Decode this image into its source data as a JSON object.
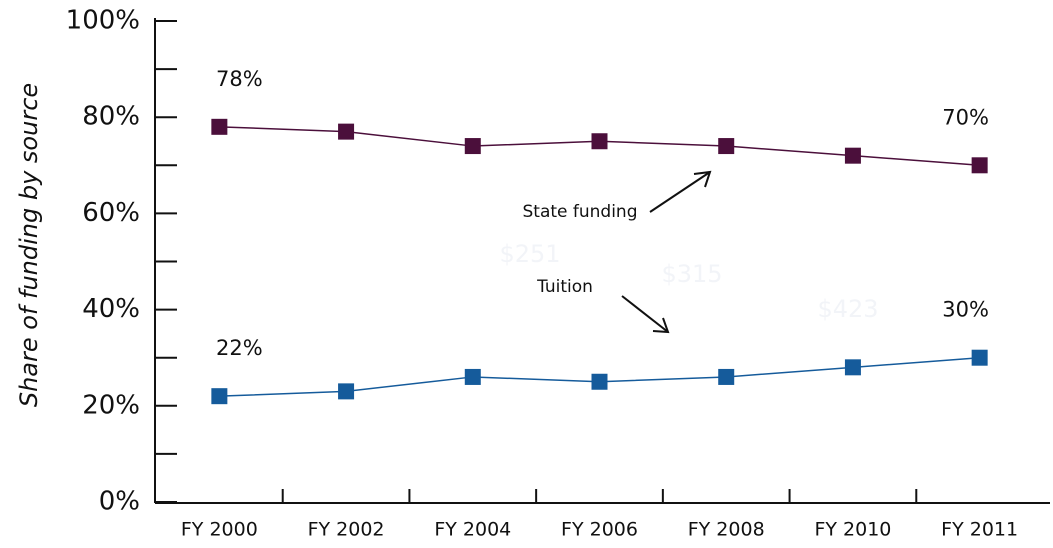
{
  "chart_data": {
    "type": "line",
    "y_label": "Share of funding by source",
    "categories": [
      "FY 2000",
      "FY 2002",
      "FY 2004",
      "FY 2006",
      "FY 2008",
      "FY 2010",
      "FY 2011"
    ],
    "series": [
      {
        "name": "State funding",
        "color": "#4b0f3b",
        "values": [
          78,
          77,
          74,
          75,
          74,
          72,
          70
        ],
        "value_labels": [
          "78%",
          null,
          null,
          null,
          null,
          null,
          "70%"
        ]
      },
      {
        "name": "Tuition",
        "color": "#155b9b",
        "values": [
          22,
          23,
          26,
          25,
          26,
          28,
          30
        ],
        "value_labels": [
          "22%",
          null,
          null,
          null,
          null,
          null,
          "30%"
        ]
      }
    ],
    "ylim": [
      0,
      100
    ],
    "yticks": [
      {
        "value": 0,
        "label": "0%"
      },
      {
        "value": 20,
        "label": "20%"
      },
      {
        "value": 40,
        "label": "40%"
      },
      {
        "value": 60,
        "label": "60%"
      },
      {
        "value": 80,
        "label": "80%"
      },
      {
        "value": 100,
        "label": "100%"
      }
    ],
    "yminor_ticks": [
      10,
      30,
      50,
      70,
      90
    ],
    "watermark_texts": [
      "$251",
      "$315",
      "$423"
    ]
  }
}
